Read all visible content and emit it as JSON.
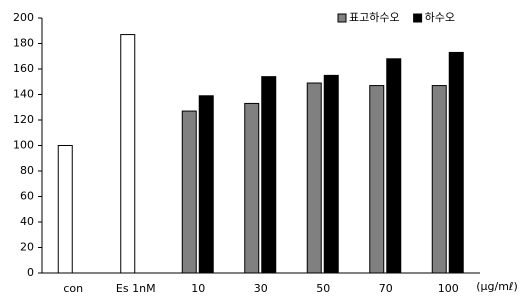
{
  "chart_data": {
    "type": "bar",
    "categories": [
      "con",
      "Es 1nM",
      "10",
      "30",
      "50",
      "70",
      "100"
    ],
    "x_label": "(μg/mℓ)",
    "series": [
      {
        "color": "#ffffff",
        "values": [
          100,
          187,
          null,
          null,
          null,
          null,
          null
        ]
      },
      {
        "name": "표고하수오",
        "color": "#808080",
        "values": [
          null,
          null,
          127,
          133,
          149,
          147,
          147
        ]
      },
      {
        "name": "하수오",
        "color": "#000000",
        "values": [
          null,
          null,
          139,
          154,
          155,
          168,
          173
        ]
      }
    ],
    "ylim": [
      0,
      200
    ],
    "yticks": [
      0,
      20,
      40,
      60,
      80,
      100,
      120,
      140,
      160,
      180,
      200
    ],
    "grid": false,
    "legend": "top-right"
  }
}
